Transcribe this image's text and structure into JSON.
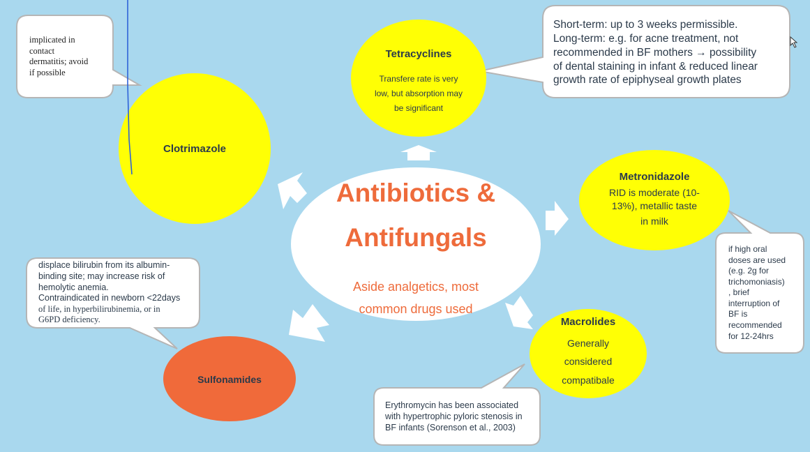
{
  "colors": {
    "background": "#a9d8ee",
    "yellow": "#ffff05",
    "orange_node": "#f06a3a",
    "title_text": "#ee6b3b",
    "callout_fill": "#ffffff",
    "callout_border": "#b5b5b5"
  },
  "center": {
    "title_line1": "Antibiotics &",
    "title_line2": "Antifungals",
    "subtitle_line1": "Aside analgetics, most",
    "subtitle_line2": "common drugs used"
  },
  "nodes": {
    "clotrimazole": {
      "title": "Clotrimazole"
    },
    "tetracyclines": {
      "title": "Tetracyclines",
      "line1": "Transfere rate is very",
      "line2": "low, but absorption may",
      "line3": "be significant"
    },
    "metronidazole": {
      "title": "Metronidazole",
      "line1": "RID is moderate (10-",
      "line2": "13%), metallic taste",
      "line3": "in milk"
    },
    "macrolides": {
      "title": "Macrolides",
      "line1": "Generally",
      "line2": "considered",
      "line3": "compatibale"
    },
    "sulfonamides": {
      "title": "Sulfonamides"
    }
  },
  "callouts": {
    "clotrimazole": {
      "line1": "implicated in",
      "line2": "contact",
      "line3": "dermatitis; avoid",
      "line4": "if possible"
    },
    "tetracyclines": {
      "line1": "Short-term: up to 3 weeks permissible.",
      "line2": "Long-term: e.g. for acne treatment, not",
      "line3": "recommended in BF mothers  → possibility",
      "line4": "of dental staining in infant & reduced linear",
      "line5": "growth rate of epiphyseal growth plates"
    },
    "metronidazole": {
      "line1": "if high oral",
      "line2": "doses are used",
      "line3": "(e.g. 2g for",
      "line4": "trichomoniasis)",
      "line5": ", brief",
      "line6": "interruption of",
      "line7": "BF is",
      "line8": "recommended",
      "line9": "for 12-24hrs"
    },
    "macrolides": {
      "line1": "Erythromycin has been associated",
      "line2": "with hypertrophic pyloric stenosis in",
      "line3": "BF infants (Sorenson et al., 2003)"
    },
    "sulfonamides": {
      "line1": "displace bilirubin from its albumin-",
      "line2": "binding site; may increase risk of",
      "line3": "hemolytic anemia.",
      "line4": "Contraindicated in newborn <22days",
      "line5": "of life, in hyperbilirubinemia, or in",
      "line6": "G6PD deficiency."
    }
  }
}
